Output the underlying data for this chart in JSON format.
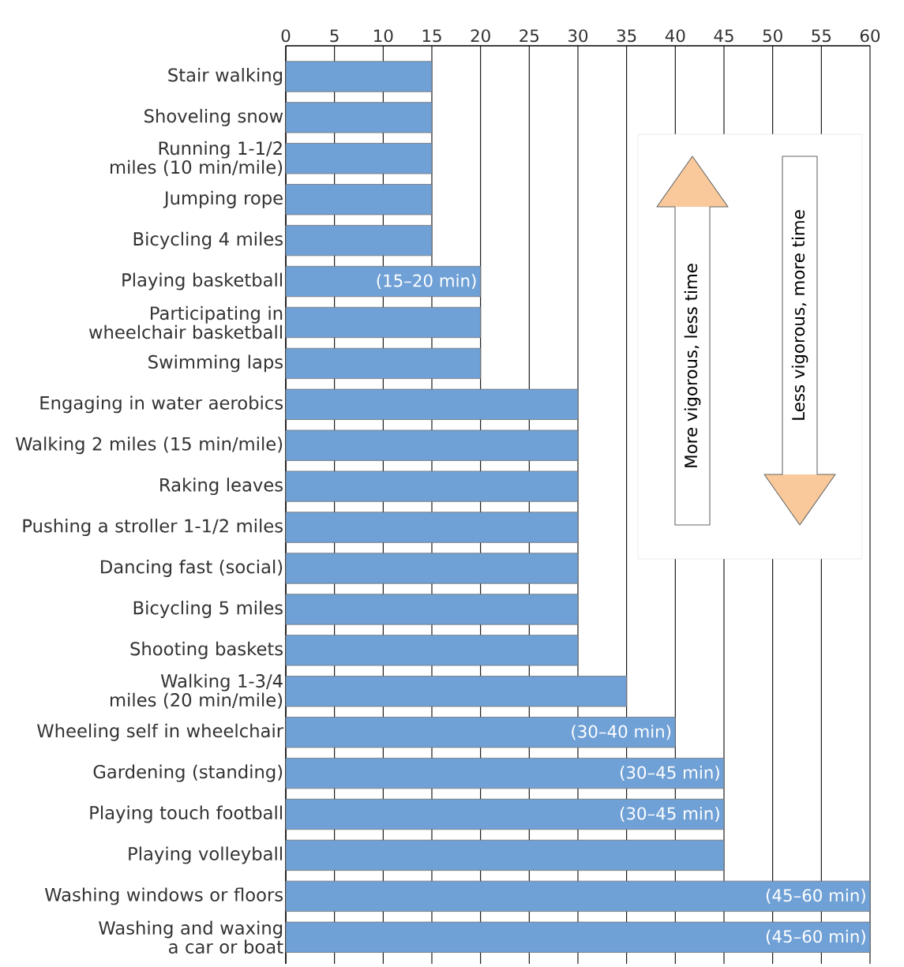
{
  "chart_data": {
    "type": "bar",
    "orientation": "horizontal",
    "categories": [
      "Stair walking",
      "Shoveling snow",
      "Running 1-1/2 miles (10 min/mile)",
      "Jumping rope",
      "Bicycling 4 miles",
      "Playing basketball",
      "Participating in wheelchair basketball",
      "Swimming laps",
      "Engaging in water aerobics",
      "Walking 2 miles (15 min/mile)",
      "Raking leaves",
      "Pushing a stroller 1-1/2 miles",
      "Dancing fast (social)",
      "Bicycling 5 miles",
      "Shooting baskets",
      "Walking 1-3/4 miles (20 min/mile)",
      "Wheeling self in wheelchair",
      "Gardening (standing)",
      "Playing touch football",
      "Playing volleyball",
      "Washing windows or floors",
      "Washing and waxing a car or boat"
    ],
    "values": [
      15,
      15,
      15,
      15,
      15,
      20,
      20,
      20,
      30,
      30,
      30,
      30,
      30,
      30,
      30,
      35,
      40,
      45,
      45,
      45,
      60,
      60
    ],
    "value_labels": [
      null,
      null,
      null,
      null,
      null,
      "(15–20 min)",
      null,
      null,
      null,
      null,
      null,
      null,
      null,
      null,
      null,
      null,
      "(30–40 min)",
      "(30–45 min)",
      "(30–45 min)",
      null,
      "(45–60 min)",
      "(45–60 min)"
    ],
    "color": "#6fa0d6",
    "xlim": [
      0,
      60
    ],
    "xticks": [
      0,
      5,
      10,
      15,
      20,
      25,
      30,
      35,
      40,
      45,
      50,
      55,
      60
    ],
    "grid": "x",
    "annotations": [
      "More vigorous, less time",
      "Less vigorous, more time"
    ]
  }
}
